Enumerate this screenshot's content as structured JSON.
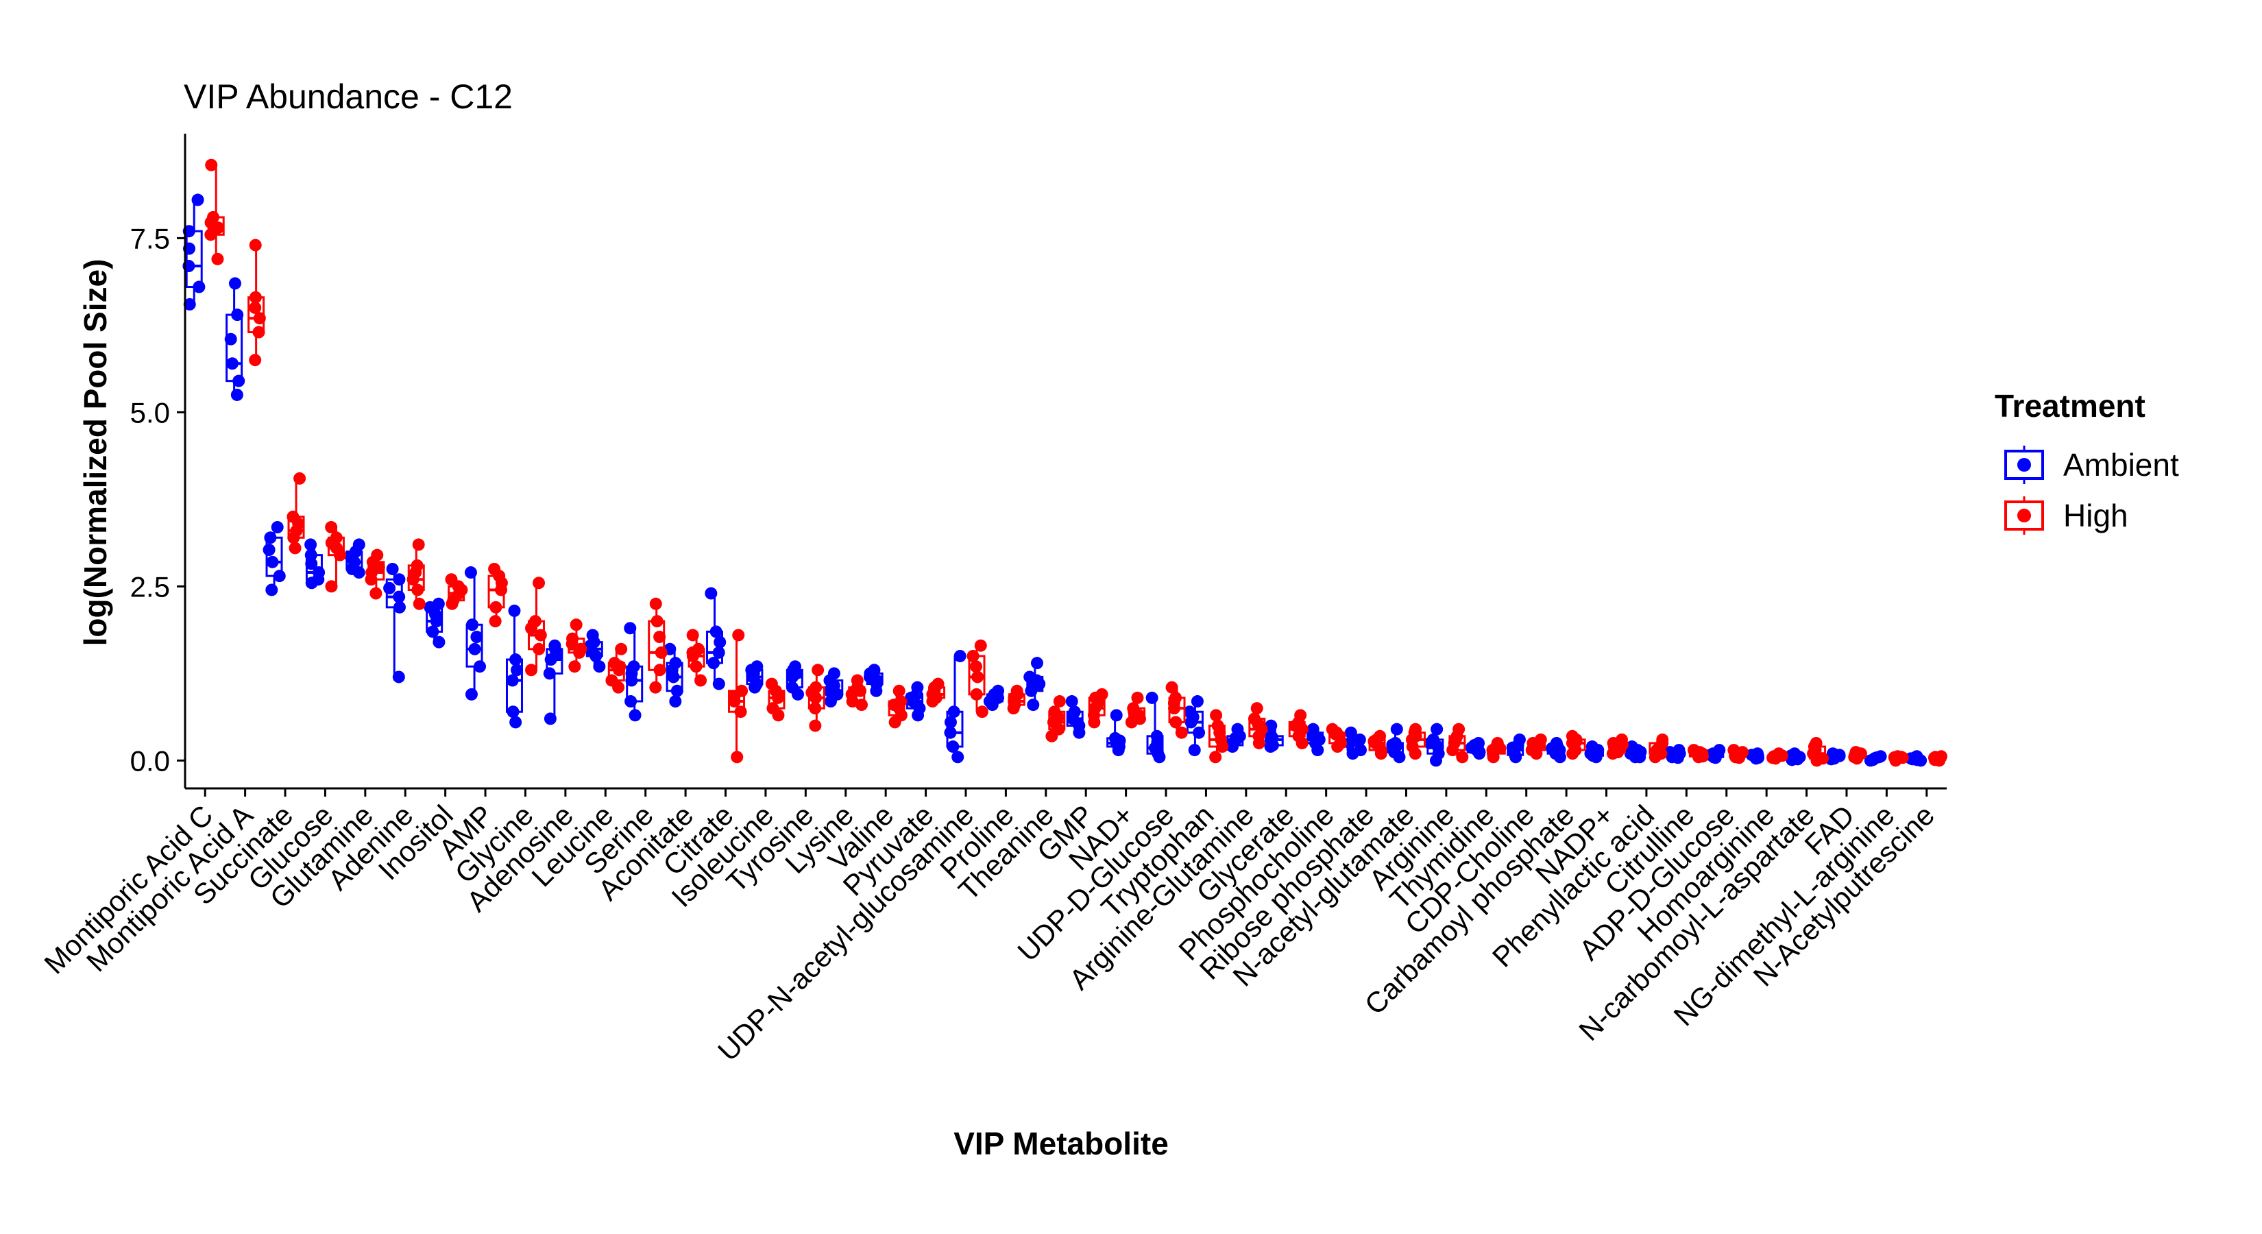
{
  "chart_data": {
    "type": "box",
    "title": "VIP Abundance - C12",
    "xlabel": "VIP Metabolite",
    "ylabel": "log(Normalized Pool Size)",
    "ylim": [
      -0.4,
      9.0
    ],
    "yticks": [
      0.0,
      2.5,
      5.0,
      7.5
    ],
    "ytick_labels": [
      "0.0",
      "2.5",
      "5.0",
      "7.5"
    ],
    "grid": false,
    "legend": {
      "title": "Treatment",
      "position": "right",
      "entries": [
        {
          "label": "Ambient",
          "color": "#0000ff"
        },
        {
          "label": "High",
          "color": "#ff0000"
        }
      ]
    },
    "categories": [
      "Montiporic Acid C",
      "Montiporic Acid A",
      "Succinate",
      "Glucose",
      "Glutamine",
      "Adenine",
      "Inositol",
      "AMP",
      "Glycine",
      "Adenosine",
      "Leucine",
      "Serine",
      "Aconitate",
      "Citrate",
      "Isoleucine",
      "Tyrosine",
      "Lysine",
      "Valine",
      "Pyruvate",
      "UDP-N-acetyl-glucosamine",
      "Proline",
      "Theanine",
      "GMP",
      "NAD+",
      "UDP-D-Glucose",
      "Tryptophan",
      "Arginine-Glutamine",
      "Glycerate",
      "Phosphocholine",
      "Ribose phosphate",
      "N-acetyl-glutamate",
      "Arginine",
      "Thymidine",
      "CDP-Choline",
      "Carbamoyl phosphate",
      "NADP+",
      "Phenyllactic acid",
      "Citrulline",
      "ADP-D-Glucose",
      "Homoarginine",
      "N-carbomoyl-L-aspartate",
      "FAD",
      "NG-dimethyl-L-arginine",
      "N-Acetylputrescine"
    ],
    "series": [
      {
        "name": "Ambient",
        "color": "#0000ff",
        "medians": [
          7.1,
          5.7,
          2.85,
          2.7,
          2.85,
          2.35,
          2.0,
          1.6,
          1.15,
          1.45,
          1.6,
          1.15,
          1.2,
          1.55,
          1.2,
          1.2,
          1.0,
          1.15,
          0.85,
          0.4,
          0.9,
          1.1,
          0.6,
          0.25,
          0.18,
          0.55,
          0.3,
          0.3,
          0.3,
          0.25,
          0.2,
          0.2,
          0.15,
          0.15,
          0.15,
          0.1,
          0.1,
          0.08,
          0.08,
          0.06,
          0.05,
          0.05,
          0.03,
          0.02
        ],
        "q1": [
          6.8,
          5.45,
          2.65,
          2.6,
          2.75,
          2.2,
          1.85,
          1.35,
          0.7,
          1.25,
          1.5,
          0.85,
          1.0,
          1.4,
          1.1,
          1.05,
          0.95,
          1.1,
          0.75,
          0.2,
          0.85,
          1.0,
          0.5,
          0.2,
          0.1,
          0.4,
          0.22,
          0.22,
          0.25,
          0.15,
          0.12,
          0.1,
          0.12,
          0.08,
          0.1,
          0.07,
          0.05,
          0.05,
          0.05,
          0.04,
          0.02,
          0.03,
          0.01,
          0.01
        ],
        "q3": [
          7.6,
          6.4,
          3.2,
          2.95,
          3.0,
          2.6,
          2.2,
          1.95,
          1.45,
          1.6,
          1.7,
          1.35,
          1.4,
          1.85,
          1.3,
          1.3,
          1.15,
          1.25,
          0.95,
          0.7,
          0.95,
          1.2,
          0.7,
          0.32,
          0.35,
          0.7,
          0.35,
          0.35,
          0.4,
          0.3,
          0.25,
          0.3,
          0.22,
          0.22,
          0.2,
          0.15,
          0.15,
          0.12,
          0.1,
          0.08,
          0.07,
          0.08,
          0.05,
          0.04
        ],
        "whisker_low": [
          6.55,
          5.25,
          2.45,
          2.55,
          2.7,
          1.2,
          1.7,
          0.95,
          0.55,
          0.6,
          1.35,
          0.65,
          0.85,
          1.1,
          1.05,
          0.95,
          0.85,
          1.0,
          0.65,
          0.05,
          0.8,
          0.8,
          0.4,
          0.15,
          0.05,
          0.15,
          0.2,
          0.2,
          0.15,
          0.1,
          0.05,
          0.0,
          0.1,
          0.05,
          0.05,
          0.05,
          0.05,
          0.04,
          0.04,
          0.03,
          0.01,
          0.02,
          0.0,
          0.0
        ],
        "whisker_high": [
          8.05,
          6.85,
          3.35,
          3.1,
          3.1,
          2.75,
          2.25,
          2.7,
          2.15,
          1.65,
          1.8,
          1.9,
          1.6,
          2.4,
          1.35,
          1.35,
          1.25,
          1.3,
          1.05,
          1.5,
          1.0,
          1.4,
          0.85,
          0.65,
          0.9,
          0.85,
          0.45,
          0.5,
          0.45,
          0.4,
          0.45,
          0.45,
          0.25,
          0.3,
          0.25,
          0.2,
          0.2,
          0.15,
          0.15,
          0.1,
          0.1,
          0.1,
          0.06,
          0.06
        ]
      },
      {
        "name": "High",
        "color": "#ff0000",
        "medians": [
          7.65,
          6.35,
          3.3,
          3.05,
          2.7,
          2.6,
          2.4,
          2.45,
          1.8,
          1.6,
          1.3,
          1.55,
          1.5,
          0.85,
          0.9,
          0.9,
          0.95,
          0.75,
          0.95,
          1.2,
          0.85,
          0.55,
          0.75,
          0.65,
          0.75,
          0.3,
          0.45,
          0.45,
          0.35,
          0.25,
          0.3,
          0.25,
          0.15,
          0.2,
          0.25,
          0.2,
          0.15,
          0.1,
          0.1,
          0.06,
          0.1,
          0.08,
          0.04,
          0.03
        ],
        "q1": [
          7.55,
          6.15,
          3.2,
          2.95,
          2.6,
          2.45,
          2.3,
          2.2,
          1.6,
          1.55,
          1.15,
          1.3,
          1.35,
          0.7,
          0.75,
          0.75,
          0.85,
          0.65,
          0.9,
          0.95,
          0.8,
          0.45,
          0.65,
          0.6,
          0.55,
          0.2,
          0.35,
          0.35,
          0.25,
          0.15,
          0.2,
          0.15,
          0.1,
          0.15,
          0.15,
          0.12,
          0.1,
          0.06,
          0.05,
          0.04,
          0.03,
          0.05,
          0.02,
          0.01
        ],
        "q3": [
          7.8,
          6.65,
          3.5,
          3.2,
          2.85,
          2.8,
          2.5,
          2.65,
          2.0,
          1.75,
          1.4,
          2.0,
          1.6,
          1.0,
          1.0,
          1.05,
          1.05,
          0.85,
          1.05,
          1.5,
          0.95,
          0.7,
          0.9,
          0.75,
          0.9,
          0.5,
          0.6,
          0.55,
          0.4,
          0.3,
          0.4,
          0.35,
          0.2,
          0.25,
          0.3,
          0.25,
          0.25,
          0.12,
          0.12,
          0.08,
          0.2,
          0.1,
          0.05,
          0.05
        ],
        "whisker_low": [
          7.2,
          5.75,
          3.05,
          2.5,
          2.4,
          2.25,
          2.25,
          2.0,
          1.3,
          1.35,
          1.05,
          1.05,
          1.15,
          0.05,
          0.65,
          0.5,
          0.8,
          0.55,
          0.85,
          0.7,
          0.75,
          0.35,
          0.55,
          0.55,
          0.4,
          0.05,
          0.25,
          0.25,
          0.2,
          0.1,
          0.1,
          0.05,
          0.05,
          0.1,
          0.1,
          0.1,
          0.05,
          0.05,
          0.04,
          0.03,
          0.0,
          0.03,
          0.0,
          0.0
        ],
        "whisker_high": [
          8.55,
          7.4,
          4.05,
          3.35,
          2.95,
          3.1,
          2.6,
          2.75,
          2.55,
          1.95,
          1.6,
          2.25,
          1.8,
          1.8,
          1.1,
          1.3,
          1.15,
          1.0,
          1.1,
          1.65,
          1.0,
          0.85,
          0.95,
          0.9,
          1.05,
          0.65,
          0.75,
          0.65,
          0.45,
          0.35,
          0.45,
          0.45,
          0.25,
          0.3,
          0.35,
          0.3,
          0.3,
          0.15,
          0.15,
          0.1,
          0.25,
          0.12,
          0.06,
          0.06
        ]
      }
    ],
    "points_per_group": 6
  }
}
